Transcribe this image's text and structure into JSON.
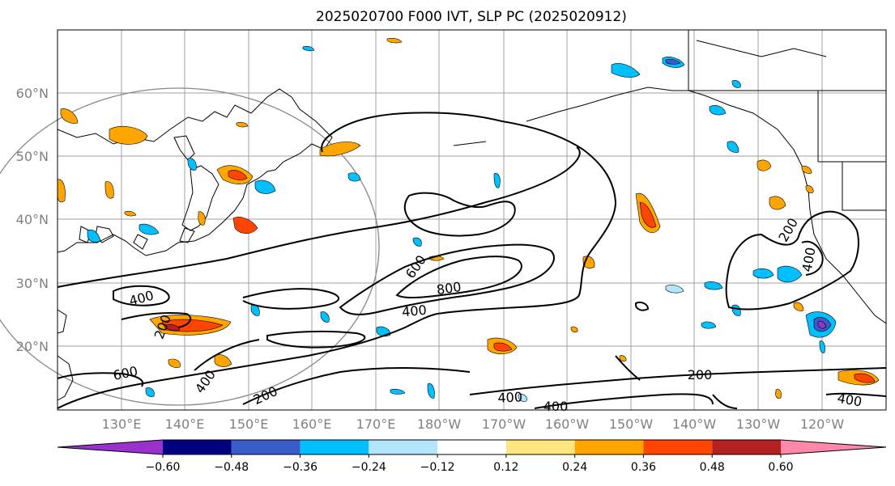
{
  "title": "2025020700 F000 IVT, SLP PC (2025020912)",
  "lat_labels": [
    "60°N",
    "50°N",
    "40°N",
    "30°N",
    "20°N"
  ],
  "lon_labels": [
    "130°E",
    "140°E",
    "150°E",
    "160°E",
    "170°E",
    "180°W",
    "170°W",
    "160°W",
    "150°W",
    "140°W",
    "130°W",
    "120°W"
  ],
  "colorbar": {
    "ticks": [
      "−0.60",
      "−0.48",
      "−0.36",
      "−0.24",
      "−0.12",
      "0.12",
      "0.24",
      "0.36",
      "0.48",
      "0.60"
    ],
    "colors": [
      "#9932cc",
      "#000080",
      "#3a5bc8",
      "#00bfff",
      "#b3e5fc",
      "#ffffff",
      "#ffe680",
      "#ffa500",
      "#ff4500",
      "#b22222",
      "#ff88aa"
    ]
  },
  "contour_labels": {
    "c1": "400",
    "c2": "600",
    "c3": "800",
    "c4": "400",
    "c5": "200",
    "c6": "600",
    "c7": "400",
    "c8": "200",
    "c9": "400",
    "c10": "400",
    "c11": "200",
    "c12": "200",
    "c13": "400",
    "c14": "400"
  }
}
